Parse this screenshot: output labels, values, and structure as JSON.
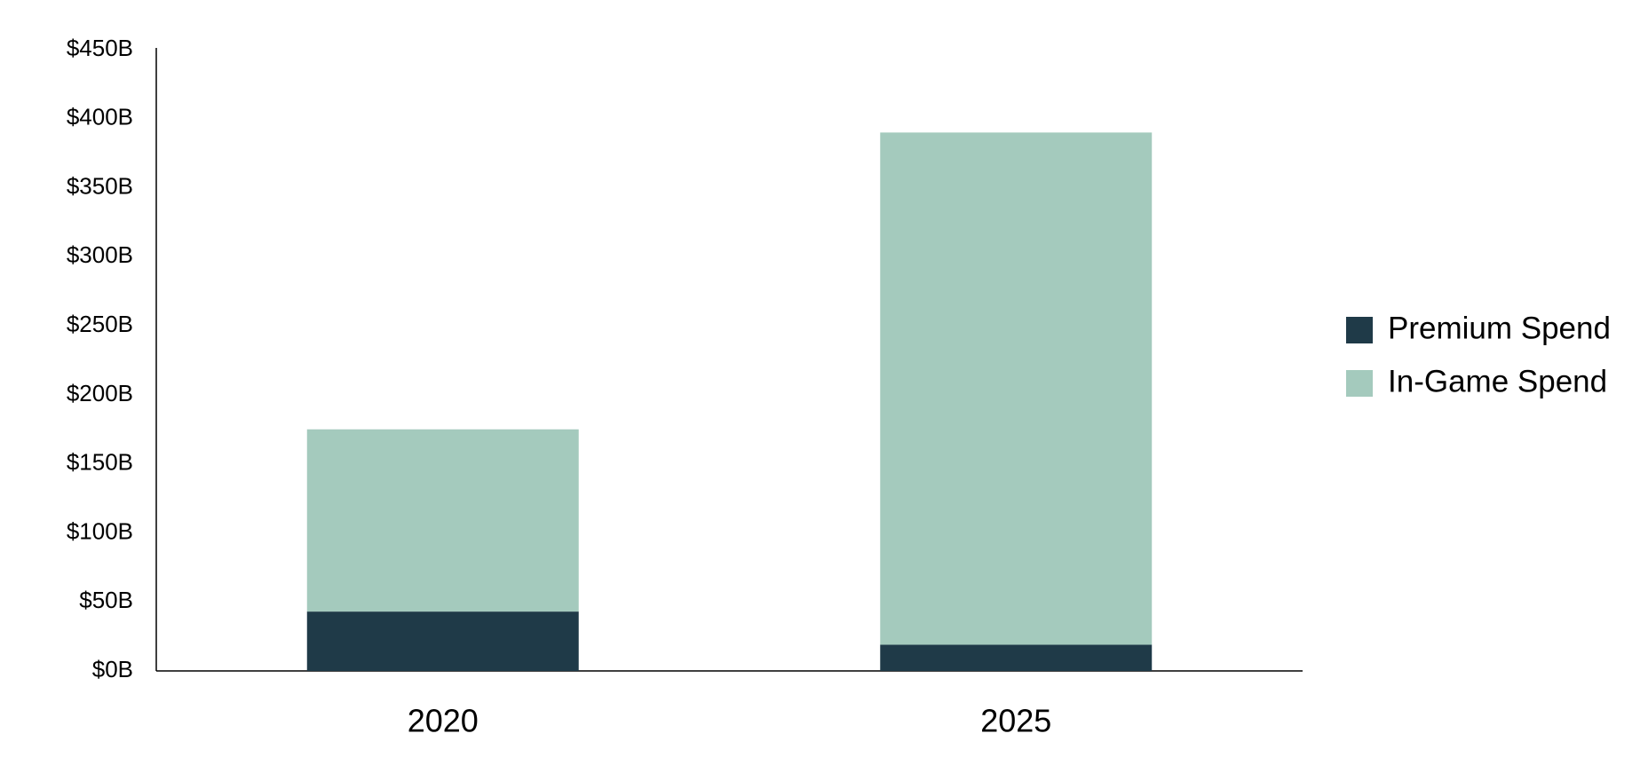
{
  "chart_data": {
    "type": "stacked_bar",
    "categories": [
      "2020",
      "2025"
    ],
    "series": [
      {
        "name": "Premium Spend",
        "color": "#1f3a48",
        "values": [
          43,
          19
        ]
      },
      {
        "name": "In-Game Spend",
        "color": "#a4cabd",
        "values": [
          132,
          371
        ]
      }
    ],
    "ylim": [
      0,
      450
    ],
    "yticks": [
      {
        "value": 0,
        "label": "$0B"
      },
      {
        "value": 50,
        "label": "$50B"
      },
      {
        "value": 100,
        "label": "$100B"
      },
      {
        "value": 150,
        "label": "$150B"
      },
      {
        "value": 200,
        "label": "$200B"
      },
      {
        "value": 250,
        "label": "$250B"
      },
      {
        "value": 300,
        "label": "$300B"
      },
      {
        "value": 350,
        "label": "$350B"
      },
      {
        "value": 400,
        "label": "$400B"
      },
      {
        "value": 450,
        "label": "$450B"
      }
    ],
    "grid": false,
    "legend": "right"
  }
}
